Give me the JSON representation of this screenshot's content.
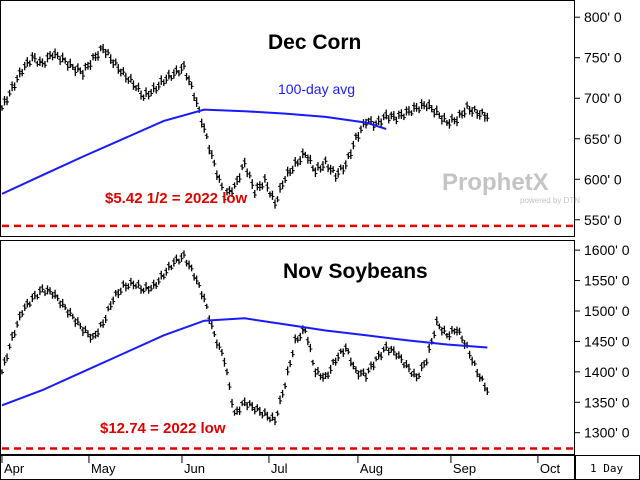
{
  "chart_data": [
    {
      "type": "line",
      "title": "Dec Corn",
      "ylim": [
        530,
        820
      ],
      "yticks": [
        "800' 0",
        "750' 0",
        "700' 0",
        "650' 0",
        "600' 0",
        "550' 0"
      ],
      "ytick_values": [
        800,
        750,
        700,
        650,
        600,
        550
      ],
      "series": [
        {
          "name": "price",
          "x": [
            0,
            5,
            10,
            15,
            20,
            25,
            30,
            35,
            40,
            45,
            50,
            55,
            60,
            65,
            70,
            75,
            80,
            85,
            90,
            95,
            100,
            105,
            110,
            115,
            120,
            125,
            130,
            135,
            140,
            145,
            150,
            155,
            160,
            165,
            170,
            175,
            180,
            185
          ],
          "values": [
            688,
            712,
            735,
            750,
            742,
            755,
            748,
            738,
            732,
            748,
            762,
            745,
            730,
            718,
            702,
            710,
            722,
            730,
            738,
            705,
            662,
            618,
            580,
            590,
            620,
            585,
            598,
            570,
            602,
            618,
            632,
            610,
            620,
            605,
            618,
            650,
            672,
            668
          ]
        },
        {
          "name": "100-day avg",
          "x": [
            0,
            20,
            40,
            60,
            80,
            100,
            120,
            140,
            160,
            180,
            190
          ],
          "values": [
            582,
            605,
            628,
            650,
            672,
            686,
            684,
            681,
            677,
            670,
            662
          ]
        }
      ],
      "series_tail": {
        "x": [
          190,
          195,
          200,
          205,
          210,
          215,
          220,
          225,
          230,
          235,
          240
        ],
        "values": [
          678,
          676,
          682,
          688,
          692,
          682,
          670,
          674,
          688,
          682,
          678
        ]
      },
      "annotations": {
        "avg_label": "100-day avg",
        "low_label": "$5.42 1/2 = 2022 low"
      },
      "low_value": 542.5
    },
    {
      "type": "line",
      "title": "Nov Soybeans",
      "ylim": [
        1265,
        1615
      ],
      "yticks": [
        "1600' 0",
        "1550' 0",
        "1500' 0",
        "1450' 0",
        "1400' 0",
        "1350' 0",
        "1300' 0"
      ],
      "ytick_values": [
        1600,
        1550,
        1500,
        1450,
        1400,
        1350,
        1300
      ],
      "series": [
        {
          "name": "price",
          "x": [
            0,
            5,
            10,
            15,
            20,
            25,
            30,
            35,
            40,
            45,
            50,
            55,
            60,
            65,
            70,
            75,
            80,
            85,
            90,
            95,
            100,
            105,
            110,
            115,
            120,
            125,
            130,
            135,
            140,
            145,
            150,
            155,
            160,
            165,
            170,
            175,
            180,
            185,
            190,
            195,
            200,
            205,
            210,
            215,
            220,
            225,
            230,
            235,
            240
          ],
          "values": [
            1400,
            1455,
            1500,
            1520,
            1535,
            1530,
            1510,
            1490,
            1470,
            1455,
            1480,
            1520,
            1540,
            1545,
            1535,
            1540,
            1560,
            1580,
            1590,
            1560,
            1520,
            1460,
            1420,
            1330,
            1350,
            1340,
            1330,
            1320,
            1380,
            1450,
            1470,
            1400,
            1390,
            1420,
            1440,
            1400,
            1395,
            1420,
            1440,
            1430,
            1410,
            1390,
            1420,
            1480,
            1460,
            1470,
            1440,
            1400,
            1370
          ]
        },
        {
          "name": "100-day avg",
          "x": [
            0,
            20,
            40,
            60,
            80,
            100,
            120,
            140,
            160,
            180,
            200,
            220,
            240
          ],
          "values": [
            1345,
            1370,
            1400,
            1430,
            1460,
            1484,
            1488,
            1478,
            1468,
            1460,
            1452,
            1445,
            1440
          ]
        }
      ],
      "annotations": {
        "low_label": "$12.74 = 2022 low"
      },
      "low_value": 1274
    }
  ],
  "x_axis": {
    "labels": [
      "Apr",
      "May",
      "Jun",
      "Jul",
      "Aug",
      "Sep",
      "Oct"
    ],
    "label_x": [
      0,
      43,
      89,
      132,
      176,
      222,
      265
    ]
  },
  "period_label": "1 Day",
  "brand": {
    "name": "ProphetX",
    "sub": "powered by DTN"
  },
  "colors": {
    "price_bars": "#000000",
    "average_line": "#1a1aff",
    "low_line": "#e00000",
    "background": "#ffffff"
  }
}
